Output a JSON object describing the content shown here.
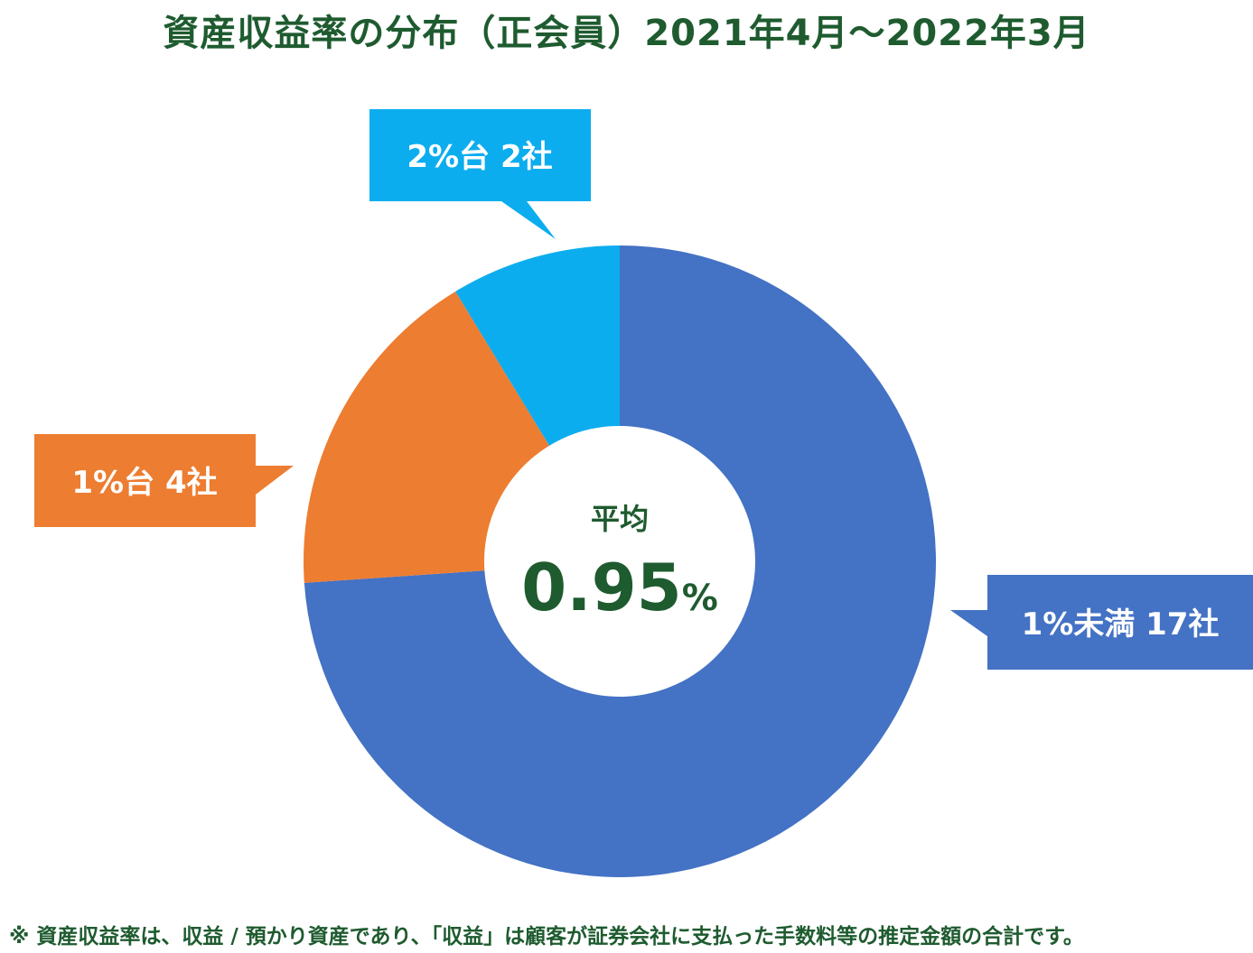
{
  "chart_data": {
    "type": "pie",
    "title": "資産収益率の分布（正会員）2021年4月〜2022年3月",
    "center_caption": "平均",
    "center_value": "0.95",
    "center_unit": "%",
    "series": [
      {
        "label": "1%未満 17社",
        "value": 17,
        "color": "#4472c4"
      },
      {
        "label": "1%台 4社",
        "value": 4,
        "color": "#ed7d31"
      },
      {
        "label": "2%台 2社",
        "value": 2,
        "color": "#0cadee"
      }
    ],
    "legend": "callouts"
  },
  "footnote": "※ 資産収益率は、収益 / 預かり資産であり、「収益」は顧客が証券会社に支払った手数料等の推定金額の合計です。"
}
